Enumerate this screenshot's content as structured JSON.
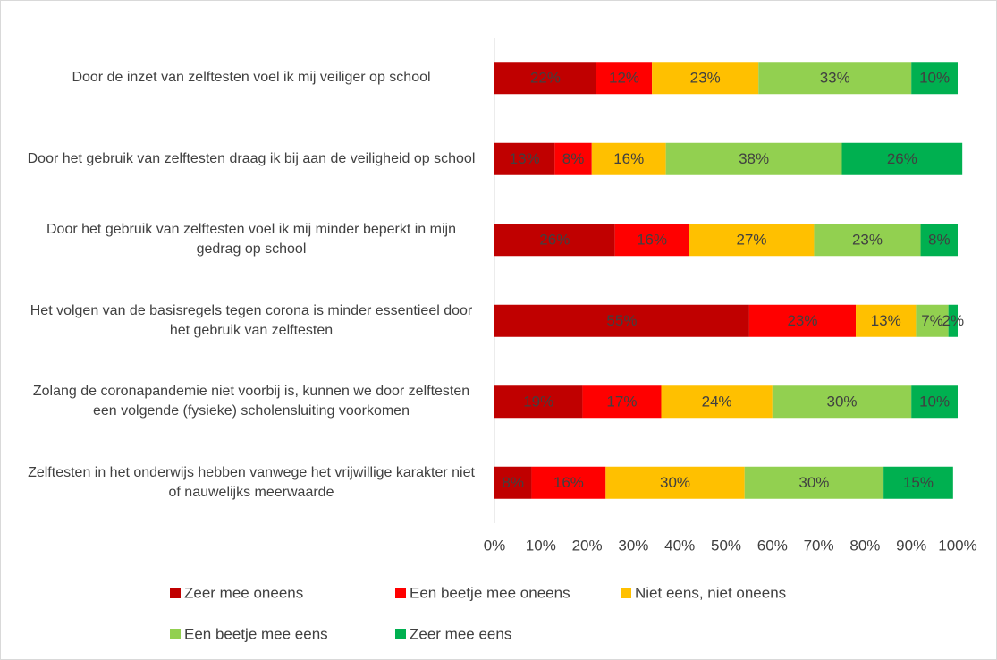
{
  "chart_data": {
    "type": "stacked_bar_horizontal",
    "categories": [
      "Door de inzet van zelftesten voel ik mij veiliger op school",
      "Door het gebruik van zelftesten draag ik bij aan de veiligheid op school",
      "Door het gebruik van zelftesten voel ik mij minder beperkt in mijn gedrag op school",
      "Het volgen van de basisregels tegen corona is minder essentieel door het gebruik van zelftesten",
      "Zolang de coronapandemie niet voorbij is, kunnen we door zelftesten een volgende (fysieke) scholensluiting voorkomen",
      "Zelftesten in het onderwijs hebben vanwege het vrijwillige karakter niet of nauwelijks meerwaarde"
    ],
    "series": [
      {
        "name": "Zeer mee oneens",
        "color": "#c00000",
        "values": [
          22,
          13,
          26,
          55,
          19,
          8
        ],
        "value_labels": [
          "22%",
          "13%",
          "26%",
          "55%",
          "19%",
          "8%"
        ]
      },
      {
        "name": "Een beetje mee oneens",
        "color": "#ff0000",
        "values": [
          12,
          8,
          16,
          23,
          17,
          16
        ],
        "value_labels": [
          "12%",
          "8%",
          "16%",
          "23%",
          "17%",
          "16%"
        ]
      },
      {
        "name": "Niet eens, niet oneens",
        "color": "#ffc000",
        "values": [
          23,
          16,
          27,
          13,
          24,
          30
        ],
        "value_labels": [
          "23%",
          "16%",
          "27%",
          "13%",
          "24%",
          "30%"
        ]
      },
      {
        "name": "Een beetje mee eens",
        "color": "#92d050",
        "values": [
          33,
          38,
          23,
          7,
          30,
          30
        ],
        "value_labels": [
          "33%",
          "38%",
          "23%",
          "7%",
          "30%",
          "30%"
        ]
      },
      {
        "name": "Zeer mee eens",
        "color": "#00b050",
        "values": [
          10,
          26,
          8,
          2,
          10,
          15
        ],
        "value_labels": [
          "10%",
          "26%",
          "8%",
          "2%",
          "10%",
          "15%"
        ]
      }
    ],
    "xlim": [
      0,
      100
    ],
    "xticks": [
      {
        "value": 0,
        "label": "0%"
      },
      {
        "value": 10,
        "label": "10%"
      },
      {
        "value": 20,
        "label": "20%"
      },
      {
        "value": 30,
        "label": "30%"
      },
      {
        "value": 40,
        "label": "40%"
      },
      {
        "value": 50,
        "label": "50%"
      },
      {
        "value": 60,
        "label": "60%"
      },
      {
        "value": 70,
        "label": "70%"
      },
      {
        "value": 80,
        "label": "80%"
      },
      {
        "value": 90,
        "label": "90%"
      },
      {
        "value": 100,
        "label": "100%"
      }
    ],
    "legend": "bottom"
  }
}
